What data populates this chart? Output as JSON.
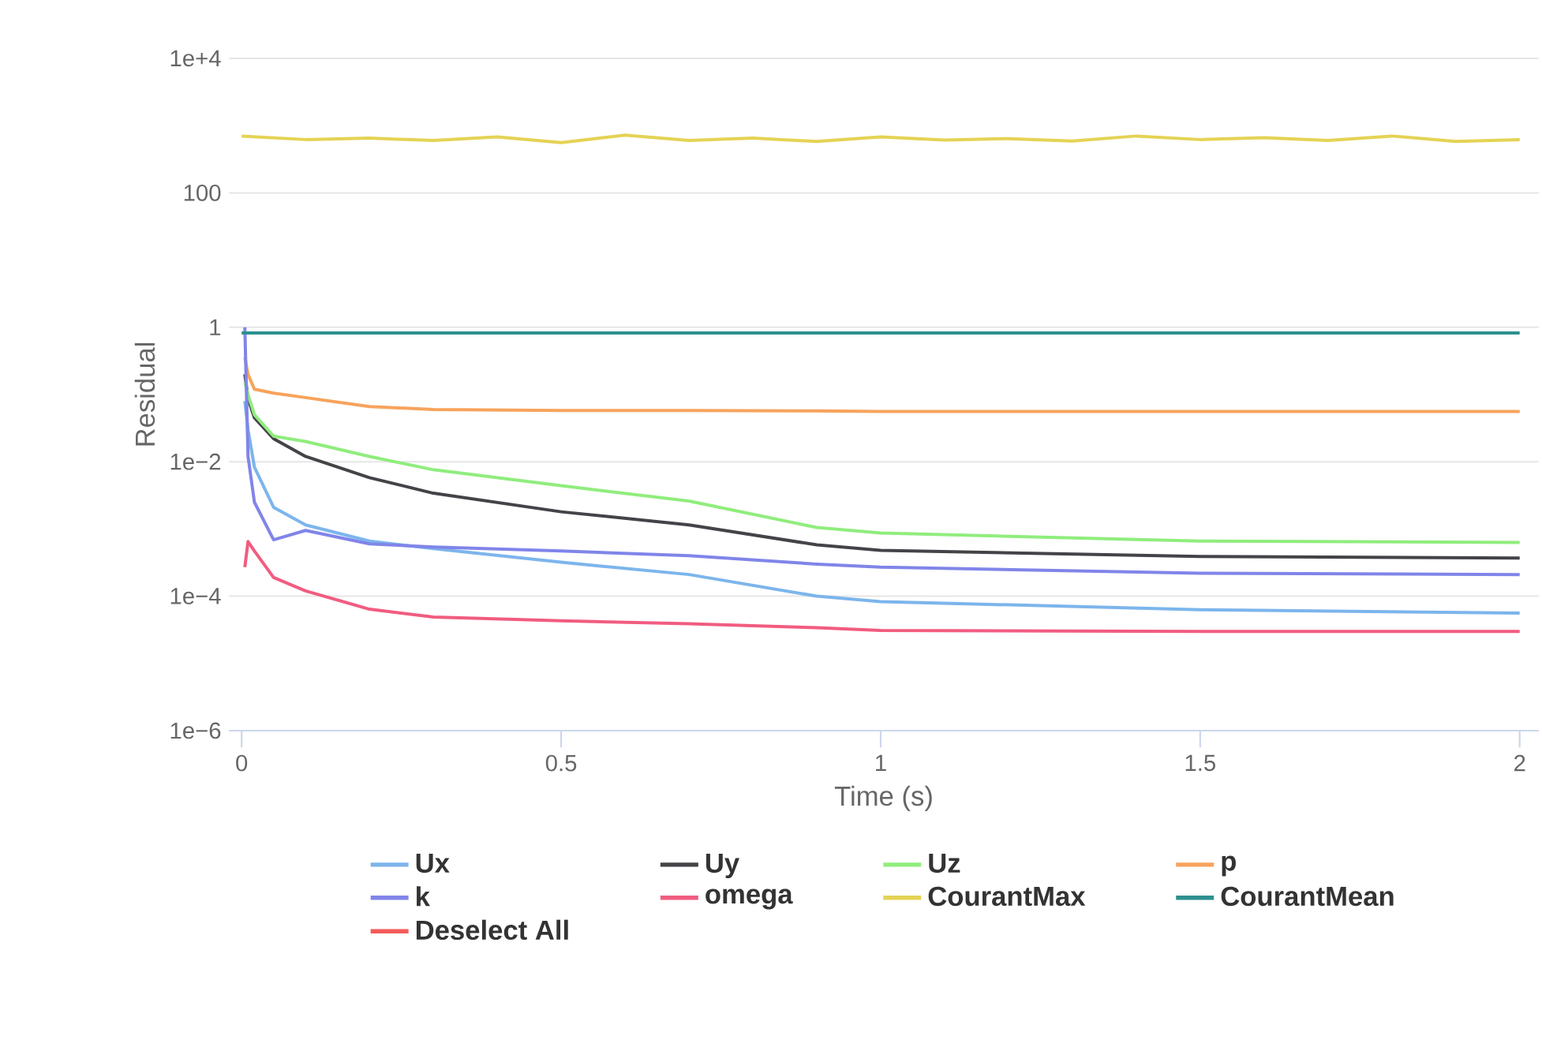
{
  "chart_data": {
    "type": "line",
    "xlabel": "Time (s)",
    "ylabel": "Residual",
    "log": "y",
    "grid": "y",
    "legend": "bottom",
    "xlim": [
      -0.02,
      2.03
    ],
    "ylim": [
      1e-06,
      10000
    ],
    "xticks": [
      0,
      0.5,
      1,
      1.5,
      2
    ],
    "yticks": [
      {
        "value": 1e-06,
        "label": "1e−6"
      },
      {
        "value": 0.0001,
        "label": "1e−4"
      },
      {
        "value": 0.01,
        "label": "1e−2"
      },
      1,
      100,
      {
        "value": 10000,
        "label": "1e+4"
      }
    ],
    "x": [
      0.005,
      0.01,
      0.02,
      0.05,
      0.1,
      0.2,
      0.3,
      0.5,
      0.7,
      0.9,
      1.0,
      1.5,
      2.0
    ],
    "series": [
      {
        "name": "Ux",
        "color": "#7cb5ec",
        "values": [
          0.08,
          0.03,
          0.0083,
          0.0021,
          0.00115,
          0.00066,
          0.00051,
          0.00032,
          0.00021,
          0.0001,
          8.3e-05,
          6.3e-05,
          5.6e-05
        ]
      },
      {
        "name": "Uy",
        "color": "#434348",
        "values": [
          0.2,
          0.087,
          0.045,
          0.022,
          0.012,
          0.0058,
          0.0034,
          0.0018,
          0.00115,
          0.00058,
          0.00048,
          0.00039,
          0.00037
        ]
      },
      {
        "name": "Uz",
        "color": "#90ed7d",
        "values": [
          0.15,
          0.1,
          0.05,
          0.024,
          0.02,
          0.012,
          0.0076,
          0.0044,
          0.0026,
          0.00105,
          0.00087,
          0.00066,
          0.00063
        ]
      },
      {
        "name": "p",
        "color": "#f7a35c",
        "values": [
          0.36,
          0.2,
          0.12,
          0.105,
          0.09,
          0.066,
          0.06,
          0.058,
          0.058,
          0.057,
          0.056,
          0.056,
          0.056
        ]
      },
      {
        "name": "k",
        "color": "#8085e9",
        "values": [
          1,
          0.012,
          0.0025,
          0.00069,
          0.00095,
          0.0006,
          0.00054,
          0.00047,
          0.0004,
          0.0003,
          0.00027,
          0.00022,
          0.00021
        ]
      },
      {
        "name": "omega",
        "color": "#f15c80",
        "values": [
          0.00027,
          0.00065,
          0.00047,
          0.00019,
          0.00012,
          6.4e-05,
          4.9e-05,
          4.3e-05,
          3.9e-05,
          3.4e-05,
          3.1e-05,
          3e-05,
          3e-05
        ]
      },
      {
        "name": "CourantMax",
        "color": "#e4d354",
        "x": [
          0,
          0.1,
          0.2,
          0.3,
          0.4,
          0.5,
          0.6,
          0.7,
          0.8,
          0.9,
          1.0,
          1.1,
          1.2,
          1.3,
          1.4,
          1.5,
          1.6,
          1.7,
          1.8,
          1.9,
          2.0
        ],
        "values": [
          700,
          620,
          650,
          600,
          680,
          560,
          720,
          600,
          650,
          580,
          680,
          610,
          640,
          590,
          700,
          620,
          660,
          600,
          700,
          580,
          620
        ]
      },
      {
        "name": "CourantMean",
        "color": "#2b908f",
        "x": [
          0,
          2.0
        ],
        "values": [
          0.82,
          0.82
        ]
      },
      {
        "name": "Deselect All",
        "color": "#f45b5b",
        "values": [
          null,
          null,
          null,
          null,
          null,
          null,
          null,
          null,
          null,
          null,
          null,
          null,
          null
        ]
      }
    ]
  }
}
